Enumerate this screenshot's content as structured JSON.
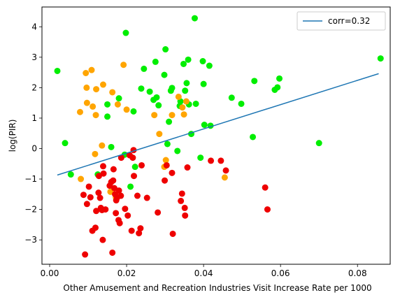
{
  "chart_data": {
    "type": "scatter",
    "xlabel": "Other Amusement and Recreation Industries Visit Increase Rate per 1000",
    "ylabel": "log(PIR)",
    "xlim": [
      -0.002,
      0.0885
    ],
    "ylim": [
      -3.8,
      4.65
    ],
    "xticks": [
      0.0,
      0.02,
      0.04,
      0.06,
      0.08
    ],
    "xtick_labels": [
      "0.00",
      "0.02",
      "0.04",
      "0.06",
      "0.08"
    ],
    "yticks": [
      -3,
      -2,
      -1,
      0,
      1,
      2,
      3,
      4
    ],
    "ytick_labels": [
      "−3",
      "−2",
      "−1",
      "0",
      "1",
      "2",
      "3",
      "4"
    ],
    "grid": false,
    "legend": {
      "placement": "top-right",
      "entries": [
        {
          "label": "corr=0.32",
          "color": "#1f77b4",
          "kind": "line"
        }
      ]
    },
    "trend_line": {
      "color": "#1f77b4",
      "points": [
        [
          0.002,
          -0.87
        ],
        [
          0.0855,
          2.46
        ]
      ]
    },
    "series": [
      {
        "color": "#00ee00",
        "points": [
          [
            0.002,
            2.55
          ],
          [
            0.004,
            0.18
          ],
          [
            0.0055,
            -0.85
          ],
          [
            0.0125,
            -0.85
          ],
          [
            0.015,
            1.45
          ],
          [
            0.015,
            1.05
          ],
          [
            0.016,
            0.05
          ],
          [
            0.018,
            1.65
          ],
          [
            0.0195,
            -0.2
          ],
          [
            0.0198,
            3.8
          ],
          [
            0.021,
            -1.25
          ],
          [
            0.0218,
            1.22
          ],
          [
            0.0222,
            -0.6
          ],
          [
            0.0238,
            1.97
          ],
          [
            0.0245,
            2.62
          ],
          [
            0.026,
            1.87
          ],
          [
            0.027,
            1.6
          ],
          [
            0.0275,
            2.85
          ],
          [
            0.0278,
            1.68
          ],
          [
            0.0283,
            1.42
          ],
          [
            0.0298,
            2.42
          ],
          [
            0.0301,
            3.26
          ],
          [
            0.0306,
            0.15
          ],
          [
            0.031,
            0.88
          ],
          [
            0.0315,
            1.9
          ],
          [
            0.0318,
            1.99
          ],
          [
            0.0332,
            -0.08
          ],
          [
            0.0338,
            1.4
          ],
          [
            0.034,
            1.55
          ],
          [
            0.0348,
            2.78
          ],
          [
            0.0352,
            1.9
          ],
          [
            0.0356,
            2.15
          ],
          [
            0.036,
            2.92
          ],
          [
            0.0362,
            1.45
          ],
          [
            0.0368,
            0.48
          ],
          [
            0.0377,
            4.28
          ],
          [
            0.038,
            1.47
          ],
          [
            0.0392,
            -0.3
          ],
          [
            0.0398,
            2.87
          ],
          [
            0.04,
            2.12
          ],
          [
            0.0402,
            0.78
          ],
          [
            0.0415,
            2.72
          ],
          [
            0.0418,
            0.75
          ],
          [
            0.0473,
            1.67
          ],
          [
            0.0498,
            1.47
          ],
          [
            0.0528,
            0.38
          ],
          [
            0.0532,
            2.22
          ],
          [
            0.0585,
            1.93
          ],
          [
            0.0592,
            2.01
          ],
          [
            0.0597,
            2.3
          ],
          [
            0.07,
            0.18
          ],
          [
            0.086,
            2.96
          ]
        ]
      },
      {
        "color": "#ffa500",
        "points": [
          [
            0.0079,
            1.2
          ],
          [
            0.0081,
            -1.0
          ],
          [
            0.0094,
            2.48
          ],
          [
            0.0096,
            2.0
          ],
          [
            0.0097,
            1.5
          ],
          [
            0.0109,
            2.58
          ],
          [
            0.0112,
            1.38
          ],
          [
            0.0118,
            -0.18
          ],
          [
            0.012,
            1.1
          ],
          [
            0.0121,
            1.95
          ],
          [
            0.0136,
            0.1
          ],
          [
            0.0139,
            2.1
          ],
          [
            0.0158,
            -1.42
          ],
          [
            0.0163,
            1.85
          ],
          [
            0.0172,
            -1.6
          ],
          [
            0.0177,
            1.45
          ],
          [
            0.0192,
            2.75
          ],
          [
            0.02,
            1.28
          ],
          [
            0.0272,
            1.1
          ],
          [
            0.0285,
            0.48
          ],
          [
            0.0298,
            -0.6
          ],
          [
            0.0302,
            -0.38
          ],
          [
            0.0318,
            1.1
          ],
          [
            0.0335,
            1.7
          ],
          [
            0.0345,
            1.35
          ],
          [
            0.0349,
            1.12
          ],
          [
            0.0355,
            1.55
          ],
          [
            0.0455,
            -0.95
          ]
        ]
      },
      {
        "color": "#ee0000",
        "points": [
          [
            0.0088,
            -1.52
          ],
          [
            0.0092,
            -3.48
          ],
          [
            0.0097,
            -1.82
          ],
          [
            0.0102,
            -1.25
          ],
          [
            0.0106,
            -1.6
          ],
          [
            0.0111,
            -2.7
          ],
          [
            0.0119,
            -2.6
          ],
          [
            0.0121,
            -2.05
          ],
          [
            0.0127,
            -1.45
          ],
          [
            0.0128,
            -0.9
          ],
          [
            0.0131,
            -1.62
          ],
          [
            0.0133,
            -1.95
          ],
          [
            0.0136,
            -2.02
          ],
          [
            0.0138,
            -3.0
          ],
          [
            0.0139,
            -0.58
          ],
          [
            0.014,
            -0.82
          ],
          [
            0.0145,
            -2.0
          ],
          [
            0.0156,
            -1.22
          ],
          [
            0.016,
            -1.1
          ],
          [
            0.0163,
            -3.42
          ],
          [
            0.0165,
            -1.05
          ],
          [
            0.0166,
            -0.68
          ],
          [
            0.0168,
            -1.3
          ],
          [
            0.017,
            -1.5
          ],
          [
            0.0172,
            -2.12
          ],
          [
            0.0173,
            -1.7
          ],
          [
            0.0175,
            -1.62
          ],
          [
            0.0179,
            -2.35
          ],
          [
            0.018,
            -1.38
          ],
          [
            0.0182,
            -2.45
          ],
          [
            0.0185,
            -1.55
          ],
          [
            0.0186,
            -0.3
          ],
          [
            0.0196,
            -1.98
          ],
          [
            0.0203,
            -2.2
          ],
          [
            0.0208,
            -0.22
          ],
          [
            0.0213,
            -2.7
          ],
          [
            0.0216,
            -0.3
          ],
          [
            0.0218,
            -0.05
          ],
          [
            0.0219,
            -0.9
          ],
          [
            0.0228,
            -1.55
          ],
          [
            0.0232,
            -2.78
          ],
          [
            0.0236,
            -2.62
          ],
          [
            0.0239,
            -0.55
          ],
          [
            0.0253,
            -1.62
          ],
          [
            0.0281,
            -2.1
          ],
          [
            0.0299,
            -1.05
          ],
          [
            0.0304,
            -0.55
          ],
          [
            0.0318,
            -0.8
          ],
          [
            0.032,
            -2.8
          ],
          [
            0.0341,
            -1.72
          ],
          [
            0.0344,
            -1.48
          ],
          [
            0.0351,
            -1.95
          ],
          [
            0.0352,
            -2.2
          ],
          [
            0.0358,
            -0.62
          ],
          [
            0.0419,
            -0.4
          ],
          [
            0.0445,
            -0.4
          ],
          [
            0.0458,
            -0.72
          ],
          [
            0.056,
            -1.28
          ],
          [
            0.0566,
            -2.0
          ]
        ]
      }
    ]
  }
}
